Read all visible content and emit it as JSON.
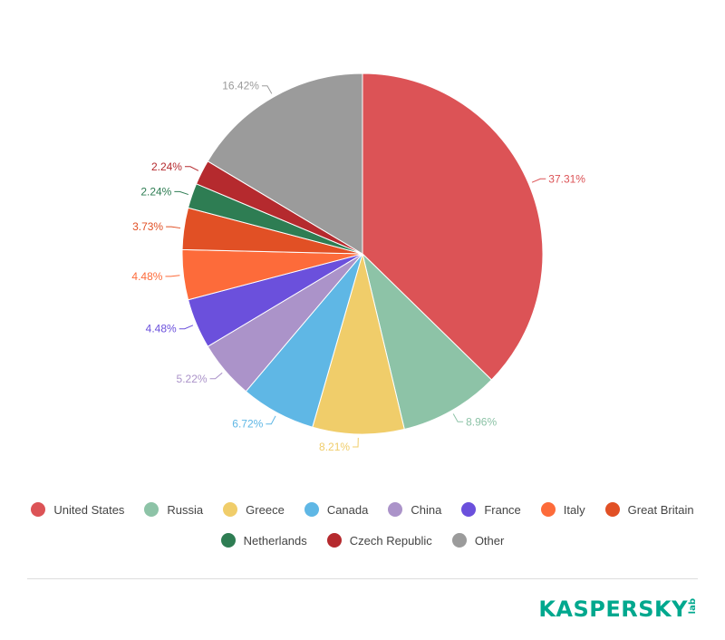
{
  "chart_data": {
    "type": "pie",
    "slices": [
      {
        "label": "United States",
        "value": 37.31,
        "display": "37.31%",
        "color": "#dc5356"
      },
      {
        "label": "Russia",
        "value": 8.96,
        "display": "8.96%",
        "color": "#8dc3a7"
      },
      {
        "label": "Greece",
        "value": 8.21,
        "display": "8.21%",
        "color": "#f0cd6a"
      },
      {
        "label": "Canada",
        "value": 6.72,
        "display": "6.72%",
        "color": "#5fb7e5"
      },
      {
        "label": "China",
        "value": 5.22,
        "display": "5.22%",
        "color": "#ab93c9"
      },
      {
        "label": "France",
        "value": 4.48,
        "display": "4.48%",
        "color": "#6b50dc"
      },
      {
        "label": "Italy",
        "value": 4.48,
        "display": "4.48%",
        "color": "#fd6b3a"
      },
      {
        "label": "Great Britain",
        "value": 3.73,
        "display": "3.73%",
        "color": "#e15025"
      },
      {
        "label": "Netherlands",
        "value": 2.24,
        "display": "2.24%",
        "color": "#2e7d53"
      },
      {
        "label": "Czech Republic",
        "value": 2.24,
        "display": "2.24%",
        "color": "#b52a2e"
      },
      {
        "label": "Other",
        "value": 16.42,
        "display": "16.42%",
        "color": "#9b9b9b"
      }
    ],
    "legend_position": "bottom",
    "start_angle": "12 o'clock",
    "direction": "clockwise"
  },
  "legend": {
    "row1": [
      {
        "label": "United States",
        "color": "#dc5356"
      },
      {
        "label": "Russia",
        "color": "#8dc3a7"
      },
      {
        "label": "Greece",
        "color": "#f0cd6a"
      },
      {
        "label": "Canada",
        "color": "#5fb7e5"
      },
      {
        "label": "China",
        "color": "#ab93c9"
      },
      {
        "label": "France",
        "color": "#6b50dc"
      },
      {
        "label": "Italy",
        "color": "#fd6b3a"
      },
      {
        "label": "Great Britain",
        "color": "#e15025"
      }
    ],
    "row2": [
      {
        "label": "Netherlands",
        "color": "#2e7d53"
      },
      {
        "label": "Czech Republic",
        "color": "#b52a2e"
      },
      {
        "label": "Other",
        "color": "#9b9b9b"
      }
    ]
  },
  "branding": {
    "logo_word": "KASPERSKY",
    "logo_suffix": "lab",
    "color": "#00a88e"
  }
}
